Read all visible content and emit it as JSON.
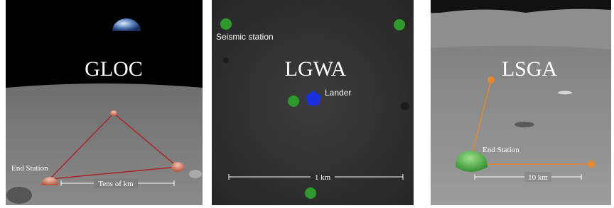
{
  "panels": [
    {
      "title": "GLOC",
      "end_station": "End Station",
      "scale": "Tens of km"
    },
    {
      "title": "LGWA",
      "station": "Seismic station",
      "lander": "Lander",
      "scale": "1 km"
    },
    {
      "title": "LSGA",
      "end_station": "End Station",
      "scale": "10 km"
    }
  ]
}
